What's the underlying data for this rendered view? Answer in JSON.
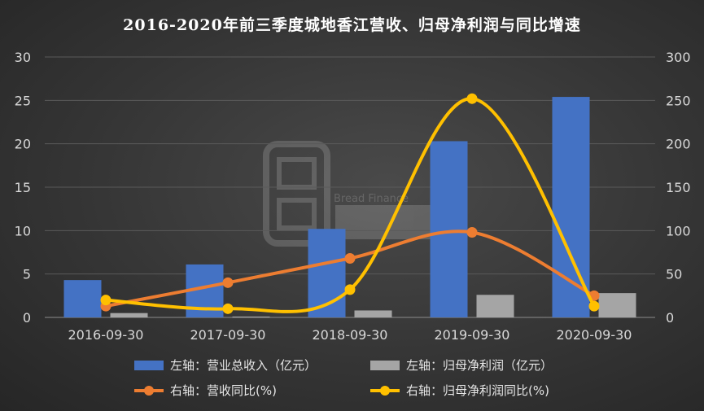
{
  "chart_data": {
    "type": "bar",
    "title": "2016-2020年前三季度城地香江营收、归母净利润与同比增速",
    "categories": [
      "2016-09-30",
      "2017-09-30",
      "2018-09-30",
      "2019-09-30",
      "2020-09-30"
    ],
    "left_axis": {
      "ylim": [
        0,
        30
      ],
      "ticks": [
        "0",
        "5",
        "10",
        "15",
        "20",
        "25",
        "30"
      ]
    },
    "right_axis": {
      "ylim": [
        0,
        300
      ],
      "ticks": [
        "0",
        "50",
        "100",
        "150",
        "200",
        "250",
        "300"
      ]
    },
    "series": [
      {
        "name": "左轴：营业总收入（亿元）",
        "type": "bar",
        "axis": "left",
        "color": "#4472c4",
        "values": [
          4.3,
          6.1,
          10.2,
          20.3,
          25.4
        ]
      },
      {
        "name": "左轴：归母净利润（亿元）",
        "type": "bar",
        "axis": "left",
        "color": "#a5a5a5",
        "values": [
          0.5,
          0.1,
          0.8,
          2.6,
          2.8
        ]
      },
      {
        "name": "右轴：营收同比(%)",
        "type": "line",
        "axis": "right",
        "color": "#ed7d31",
        "values": [
          13,
          40,
          68,
          98,
          25
        ]
      },
      {
        "name": "右轴：归母净利润同比(%)",
        "type": "line",
        "axis": "right",
        "color": "#ffc000",
        "values": [
          20,
          10,
          32,
          252,
          13
        ]
      }
    ],
    "grid": true,
    "legend": "bottom",
    "watermark": "Bread Finance"
  }
}
